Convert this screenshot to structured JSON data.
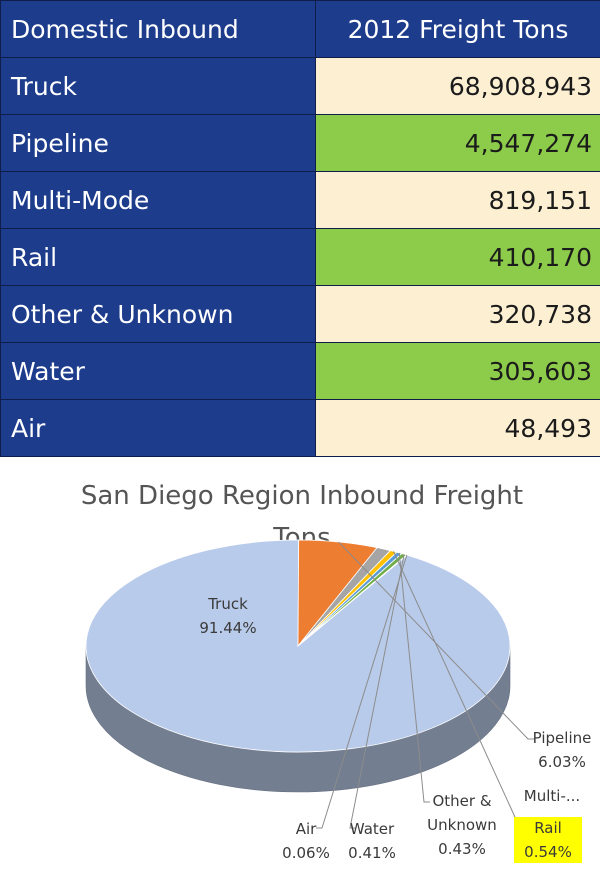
{
  "table": {
    "headers": [
      "Domestic Inbound",
      "2012 Freight Tons"
    ],
    "rows": [
      {
        "mode": "Truck",
        "tons": "68,908,943",
        "highlight": "#fdf0d2"
      },
      {
        "mode": "Pipeline",
        "tons": "4,547,274",
        "highlight": "#8ccc4a"
      },
      {
        "mode": "Multi-Mode",
        "tons": "819,151",
        "highlight": "#fdf0d2"
      },
      {
        "mode": "Rail",
        "tons": "410,170",
        "highlight": "#8ccc4a"
      },
      {
        "mode": "Other & Unknown",
        "tons": "320,738",
        "highlight": "#fdf0d2"
      },
      {
        "mode": "Water",
        "tons": "305,603",
        "highlight": "#8ccc4a"
      },
      {
        "mode": "Air",
        "tons": "48,493",
        "highlight": "#fdf0d2"
      }
    ]
  },
  "chart_data": {
    "type": "pie",
    "title": "San Diego Region Inbound  Freight Tons",
    "title_lines": [
      "San Diego Region Inbound  Freight",
      "Tons"
    ],
    "slices": [
      {
        "label_lines": [
          "Truck"
        ],
        "value": 91.44,
        "pct_label": "91.44%",
        "color": "#b9cbea"
      },
      {
        "label_lines": [
          "Pipeline"
        ],
        "value": 6.03,
        "pct_label": "6.03%",
        "color": "#ed7d31"
      },
      {
        "label_lines": [
          "Multi-..."
        ],
        "value": 1.09,
        "pct_label": "",
        "color": "#a5a5a5"
      },
      {
        "label_lines": [
          "Rail"
        ],
        "value": 0.54,
        "pct_label": "0.54%",
        "color": "#ffc000",
        "highlighted": true
      },
      {
        "label_lines": [
          "Other &",
          "Unknown"
        ],
        "value": 0.43,
        "pct_label": "0.43%",
        "color": "#5b9bd5"
      },
      {
        "label_lines": [
          "Water"
        ],
        "value": 0.41,
        "pct_label": "0.41%",
        "color": "#70ad47"
      },
      {
        "label_lines": [
          "Air"
        ],
        "value": 0.06,
        "pct_label": "0.06%",
        "color": "#264478"
      }
    ],
    "label_highlight_color": "#ffff00"
  }
}
